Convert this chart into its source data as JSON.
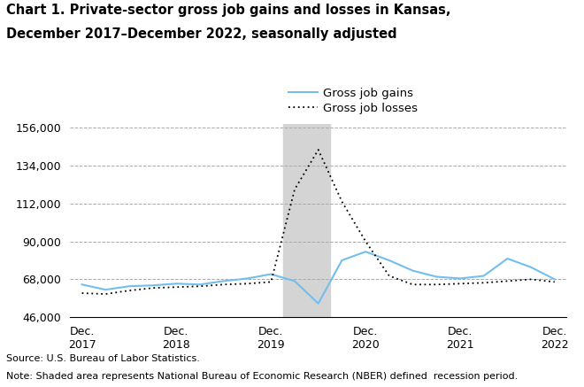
{
  "title_line1": "Chart 1. Private-sector gross job gains and losses in Kansas,",
  "title_line2": "December 2017–December 2022, seasonally adjusted",
  "title_fontsize": 10.5,
  "source_text": "Source: U.S. Bureau of Labor Statistics.",
  "note_text": "Note: Shaded area represents National Bureau of Economic Research (NBER) defined  recession period.",
  "legend_gains": "Gross job gains",
  "legend_losses": "Gross job losses",
  "gains_color": "#72bfed",
  "losses_color": "#000000",
  "grid_color": "#aaaaaa",
  "recession_color": "#d4d4d4",
  "recession_start": 8.5,
  "recession_end": 10.5,
  "ylim": [
    46000,
    158000
  ],
  "yticks": [
    46000,
    68000,
    90000,
    112000,
    134000,
    156000
  ],
  "ytick_labels": [
    "46,000",
    "68,000",
    "90,000",
    "112,000",
    "134,000",
    "156,000"
  ],
  "n_points": 21,
  "x_tick_positions": [
    0,
    4,
    8,
    12,
    16,
    20
  ],
  "x_tick_labels": [
    "Dec.\n2017",
    "Dec.\n2018",
    "Dec.\n2019",
    "Dec.\n2020",
    "Dec.\n2021",
    "Dec.\n2022"
  ],
  "gross_job_gains": [
    65000,
    62000,
    64000,
    64500,
    65500,
    65000,
    67000,
    68500,
    71000,
    67000,
    54000,
    79000,
    84000,
    79000,
    73000,
    69500,
    68500,
    70000,
    80000,
    75000,
    68000
  ],
  "gross_job_losses": [
    60000,
    59500,
    61500,
    63000,
    63500,
    64000,
    65000,
    65500,
    66500,
    120000,
    143000,
    113000,
    90000,
    70000,
    65000,
    65000,
    65500,
    66000,
    67000,
    68000,
    66500
  ]
}
